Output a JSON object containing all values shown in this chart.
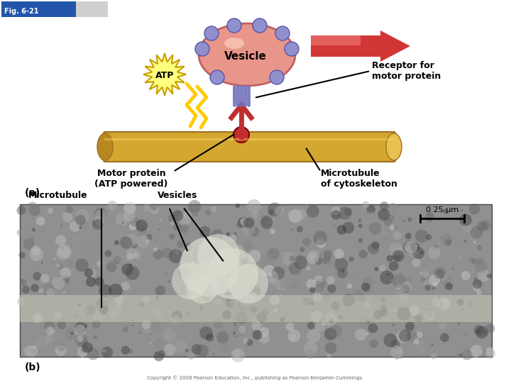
{
  "title": "Fig. 6-21",
  "panel_a_label": "(a)",
  "panel_b_label": "(b)",
  "labels": {
    "vesicle": "Vesicle",
    "atp": "ATP",
    "receptor": "Receptor for\nmotor protein",
    "motor_protein": "Motor protein\n(ATP powered)",
    "microtubule": "Microtubule\nof cytoskeleton",
    "micro_b": "Microtubule",
    "vesicles_b": "Vesicles",
    "scale": "0.25 μm"
  },
  "colors": {
    "bg_color": "#ffffff",
    "vesicle_body": "#E8968A",
    "vesicle_outline": "#C06060",
    "vesicle_bumps": "#9090CC",
    "microtubule_tube": "#D4A830",
    "motor_protein": "#C03030",
    "atp_fill": "#FFFF80",
    "atp_outline": "#C8A000",
    "arrow_red": "#CC2020",
    "lightning": "#FFCC00",
    "fig_label_bg1": "#2255AA",
    "fig_label_bg2": "#888888",
    "text_color": "#000000",
    "em_bg": "#888888"
  }
}
